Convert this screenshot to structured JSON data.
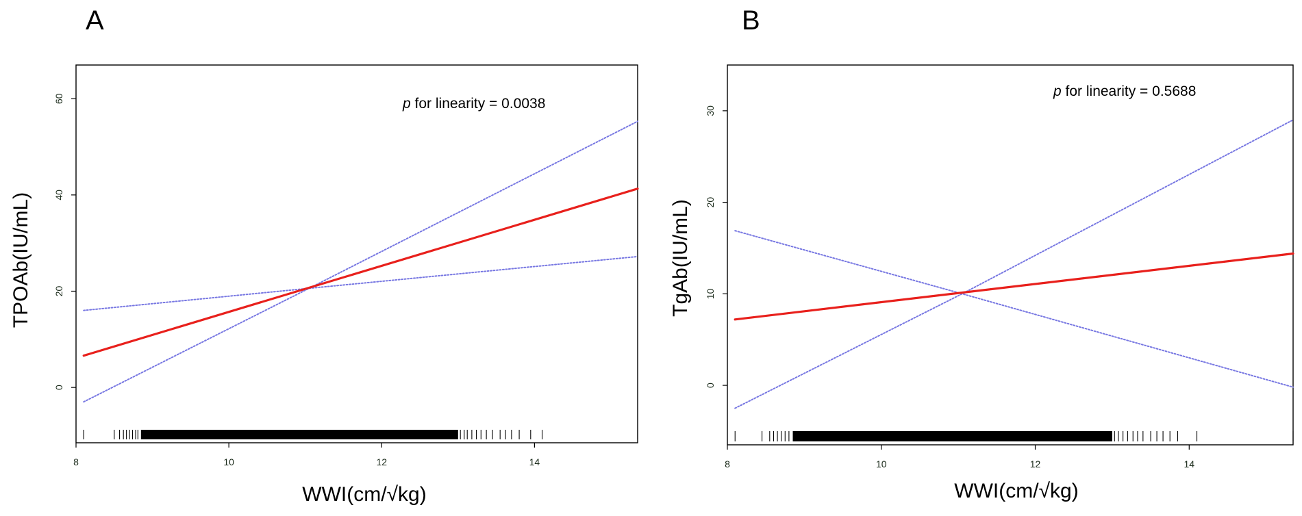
{
  "chart_data": [
    {
      "type": "line",
      "panel": "A",
      "title": "",
      "xlabel": "WWI(cm/√kg)",
      "ylabel": "TPOAb(IU/mL)",
      "xlim": [
        8,
        15.35
      ],
      "ylim": [
        -11.5,
        67
      ],
      "xticks": [
        8,
        10,
        12,
        14
      ],
      "xtick_labels": [
        "8",
        "10",
        "12",
        "14"
      ],
      "yticks": [
        0,
        20,
        40,
        60
      ],
      "ytick_labels": [
        "0",
        "20",
        "40",
        "60"
      ],
      "grid": false,
      "annotation": {
        "italic_prefix": "p",
        "text": " for linearity = 0.0038"
      },
      "series": [
        {
          "name": "estimate",
          "style": "solid",
          "color": "#e8201c",
          "x": [
            8.1,
            15.35
          ],
          "y": [
            6.6,
            41.3
          ]
        },
        {
          "name": "upper 95% CI",
          "style": "dotted",
          "color": "#7777e2",
          "x": [
            8.1,
            11.05,
            15.35
          ],
          "y": [
            16.0,
            20.6,
            55.3
          ]
        },
        {
          "name": "lower 95% CI",
          "style": "dotted",
          "color": "#7777e2",
          "x": [
            8.1,
            11.05,
            15.35
          ],
          "y": [
            -3.0,
            20.6,
            27.2
          ]
        }
      ],
      "rug": {
        "solid_range": [
          8.85,
          13.0
        ],
        "points": [
          8.1,
          8.5,
          8.57,
          8.62,
          8.66,
          8.7,
          8.74,
          8.78,
          8.81,
          13.03,
          13.08,
          13.12,
          13.18,
          13.24,
          13.3,
          13.37,
          13.45,
          13.55,
          13.62,
          13.7,
          13.8,
          13.95,
          14.1,
          15.35
        ]
      }
    },
    {
      "type": "line",
      "panel": "B",
      "title": "",
      "xlabel": "WWI(cm/√kg)",
      "ylabel": "TgAb(IU/mL)",
      "xlim": [
        8,
        15.35
      ],
      "ylim": [
        -6.5,
        35
      ],
      "xticks": [
        8,
        10,
        12,
        14
      ],
      "xtick_labels": [
        "8",
        "10",
        "12",
        "14"
      ],
      "yticks": [
        0,
        10,
        20,
        30
      ],
      "ytick_labels": [
        "0",
        "10",
        "20",
        "30"
      ],
      "grid": false,
      "annotation": {
        "italic_prefix": "p",
        "text": " for linearity = 0.5688"
      },
      "series": [
        {
          "name": "estimate",
          "style": "solid",
          "color": "#e8201c",
          "x": [
            8.1,
            15.35
          ],
          "y": [
            7.2,
            14.4
          ]
        },
        {
          "name": "upper 95% CI",
          "style": "dotted",
          "color": "#7777e2",
          "x": [
            8.1,
            11.05,
            15.35
          ],
          "y": [
            16.9,
            10.0,
            -0.2
          ]
        },
        {
          "name": "lower 95% CI",
          "style": "dotted",
          "color": "#7777e2",
          "x": [
            8.1,
            11.05,
            15.35
          ],
          "y": [
            -2.5,
            10.0,
            29.0
          ]
        }
      ],
      "rug": {
        "solid_range": [
          8.85,
          13.0
        ],
        "points": [
          8.1,
          8.45,
          8.55,
          8.6,
          8.65,
          8.7,
          8.75,
          8.8,
          13.03,
          13.08,
          13.14,
          13.2,
          13.27,
          13.33,
          13.4,
          13.5,
          13.58,
          13.66,
          13.75,
          13.85,
          14.1,
          15.35
        ]
      }
    }
  ]
}
